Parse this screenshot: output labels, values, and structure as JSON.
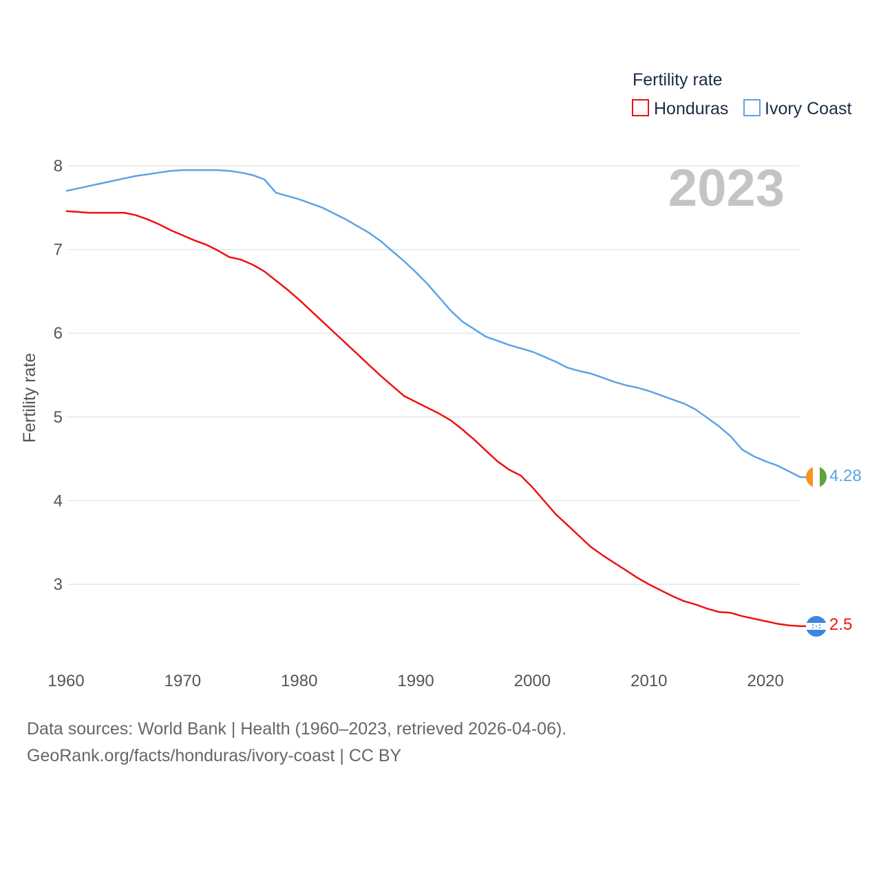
{
  "chart_data": {
    "type": "line",
    "legend_title": "Fertility rate",
    "ylabel": "Fertility rate",
    "current_year": "2023",
    "x_range": [
      1960,
      2023
    ],
    "ylim": [
      2.3,
      8
    ],
    "y_ticks": [
      3,
      4,
      5,
      6,
      7,
      8
    ],
    "x_ticks": [
      1960,
      1970,
      1980,
      1990,
      2000,
      2010,
      2020
    ],
    "series": [
      {
        "name": "Honduras",
        "color": "#ee1111",
        "end_label": "2.5",
        "flag": "honduras-flag",
        "x": [
          1960,
          1961,
          1962,
          1963,
          1964,
          1965,
          1966,
          1967,
          1968,
          1969,
          1970,
          1971,
          1972,
          1973,
          1974,
          1975,
          1976,
          1977,
          1978,
          1979,
          1980,
          1981,
          1982,
          1983,
          1984,
          1985,
          1986,
          1987,
          1988,
          1989,
          1990,
          1991,
          1992,
          1993,
          1994,
          1995,
          1996,
          1997,
          1998,
          1999,
          2000,
          2001,
          2002,
          2003,
          2004,
          2005,
          2006,
          2007,
          2008,
          2009,
          2010,
          2011,
          2012,
          2013,
          2014,
          2015,
          2016,
          2017,
          2018,
          2019,
          2020,
          2021,
          2022,
          2023
        ],
        "values": [
          7.46,
          7.45,
          7.44,
          7.44,
          7.44,
          7.44,
          7.41,
          7.36,
          7.3,
          7.23,
          7.17,
          7.11,
          7.06,
          6.99,
          6.91,
          6.88,
          6.82,
          6.74,
          6.63,
          6.52,
          6.4,
          6.27,
          6.14,
          6.01,
          5.88,
          5.75,
          5.62,
          5.49,
          5.37,
          5.25,
          5.18,
          5.11,
          5.04,
          4.96,
          4.85,
          4.73,
          4.6,
          4.47,
          4.37,
          4.3,
          4.16,
          4.0,
          3.84,
          3.71,
          3.58,
          3.45,
          3.35,
          3.26,
          3.17,
          3.08,
          3.0,
          2.93,
          2.86,
          2.8,
          2.76,
          2.71,
          2.67,
          2.66,
          2.62,
          2.59,
          2.56,
          2.53,
          2.51,
          2.5
        ]
      },
      {
        "name": "Ivory Coast",
        "color": "#5ba3e6",
        "end_label": "4.28",
        "flag": "ivory-coast-flag",
        "x": [
          1960,
          1961,
          1962,
          1963,
          1964,
          1965,
          1966,
          1967,
          1968,
          1969,
          1970,
          1971,
          1972,
          1973,
          1974,
          1975,
          1976,
          1977,
          1978,
          1979,
          1980,
          1981,
          1982,
          1983,
          1984,
          1985,
          1986,
          1987,
          1988,
          1989,
          1990,
          1991,
          1992,
          1993,
          1994,
          1995,
          1996,
          1997,
          1998,
          1999,
          2000,
          2001,
          2002,
          2003,
          2004,
          2005,
          2006,
          2007,
          2008,
          2009,
          2010,
          2011,
          2012,
          2013,
          2014,
          2015,
          2016,
          2017,
          2018,
          2019,
          2020,
          2021,
          2022,
          2023
        ],
        "values": [
          7.7,
          7.73,
          7.76,
          7.79,
          7.82,
          7.85,
          7.88,
          7.9,
          7.92,
          7.94,
          7.95,
          7.95,
          7.95,
          7.95,
          7.94,
          7.92,
          7.89,
          7.84,
          7.68,
          7.64,
          7.6,
          7.55,
          7.5,
          7.43,
          7.36,
          7.28,
          7.2,
          7.1,
          6.98,
          6.86,
          6.73,
          6.59,
          6.43,
          6.27,
          6.14,
          6.05,
          5.96,
          5.91,
          5.86,
          5.82,
          5.78,
          5.72,
          5.66,
          5.59,
          5.55,
          5.52,
          5.47,
          5.42,
          5.38,
          5.35,
          5.31,
          5.26,
          5.21,
          5.16,
          5.09,
          4.99,
          4.89,
          4.77,
          4.61,
          4.53,
          4.47,
          4.42,
          4.35,
          4.28
        ]
      }
    ]
  },
  "footer": {
    "line1": "Data sources: World Bank | Health (1960–2023, retrieved 2026-04-06).",
    "line2": "GeoRank.org/facts/honduras/ivory-coast | CC BY"
  }
}
